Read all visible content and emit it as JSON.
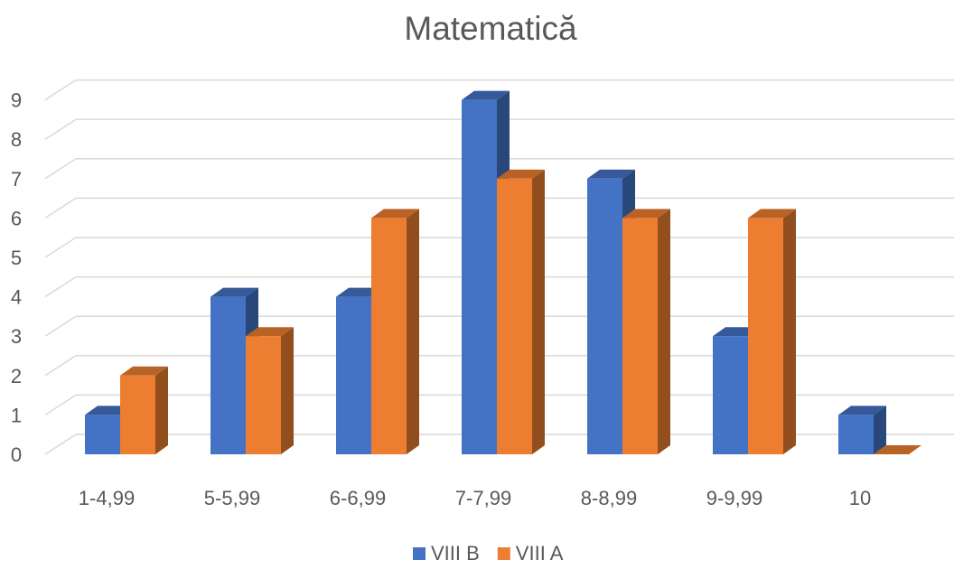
{
  "chart_data": {
    "type": "bar",
    "title": "Matematică",
    "xlabel": "",
    "ylabel": "",
    "categories": [
      "1-4,99",
      "5-5,99",
      "6-6,99",
      "7-7,99",
      "8-8,99",
      "9-9,99",
      "10"
    ],
    "series": [
      {
        "name": "VIII B",
        "color": "#4472c4",
        "values": [
          1,
          4,
          4,
          9,
          7,
          3,
          1
        ]
      },
      {
        "name": "VIII A",
        "color": "#ed7d31",
        "values": [
          2,
          3,
          6,
          7,
          6,
          6,
          0
        ]
      }
    ],
    "ylim": [
      0,
      9
    ],
    "yticks": [
      "0",
      "1",
      "2",
      "3",
      "4",
      "5",
      "6",
      "7",
      "8",
      "9"
    ],
    "grid": true,
    "legend_position": "bottom",
    "style": "3d-clustered-column"
  }
}
